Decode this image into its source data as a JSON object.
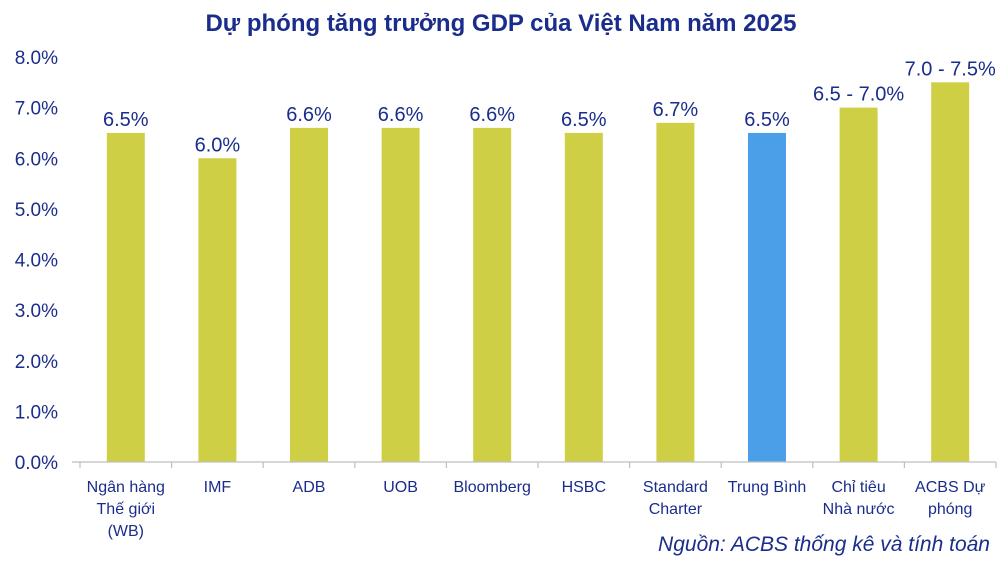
{
  "title": "Dự phóng tăng trưởng GDP của Việt Nam năm 2025",
  "source": "Nguồn:  ACBS thống kê và tính toán",
  "colors": {
    "bar": "#cfcf45",
    "highlight": "#4a9fe8",
    "text": "#1a2d8c",
    "axis": "#bfbfbf"
  },
  "chart_data": {
    "type": "bar",
    "title": "Dự phóng tăng trưởng GDP của Việt Nam năm 2025",
    "categories": [
      [
        "Ngân hàng",
        "Thế giới",
        "(WB)"
      ],
      [
        "IMF"
      ],
      [
        "ADB"
      ],
      [
        "UOB"
      ],
      [
        "Bloomberg"
      ],
      [
        "HSBC"
      ],
      [
        "Standard",
        "Charter"
      ],
      [
        "Trung Bình"
      ],
      [
        "Chỉ tiêu",
        "Nhà nước"
      ],
      [
        "ACBS Dự",
        "phóng"
      ]
    ],
    "values": [
      6.5,
      6.0,
      6.6,
      6.6,
      6.6,
      6.5,
      6.7,
      6.5,
      7.0,
      7.5
    ],
    "data_labels": [
      "6.5%",
      "6.0%",
      "6.6%",
      "6.6%",
      "6.6%",
      "6.5%",
      "6.7%",
      "6.5%",
      "6.5 - 7.0%",
      "7.0 - 7.5%"
    ],
    "highlight_index": 7,
    "y_ticks": [
      "0.0%",
      "1.0%",
      "2.0%",
      "3.0%",
      "4.0%",
      "5.0%",
      "6.0%",
      "7.0%",
      "8.0%"
    ],
    "ylim": [
      0,
      8
    ],
    "xlabel": "",
    "ylabel": "",
    "grid": false,
    "legend": "none"
  }
}
